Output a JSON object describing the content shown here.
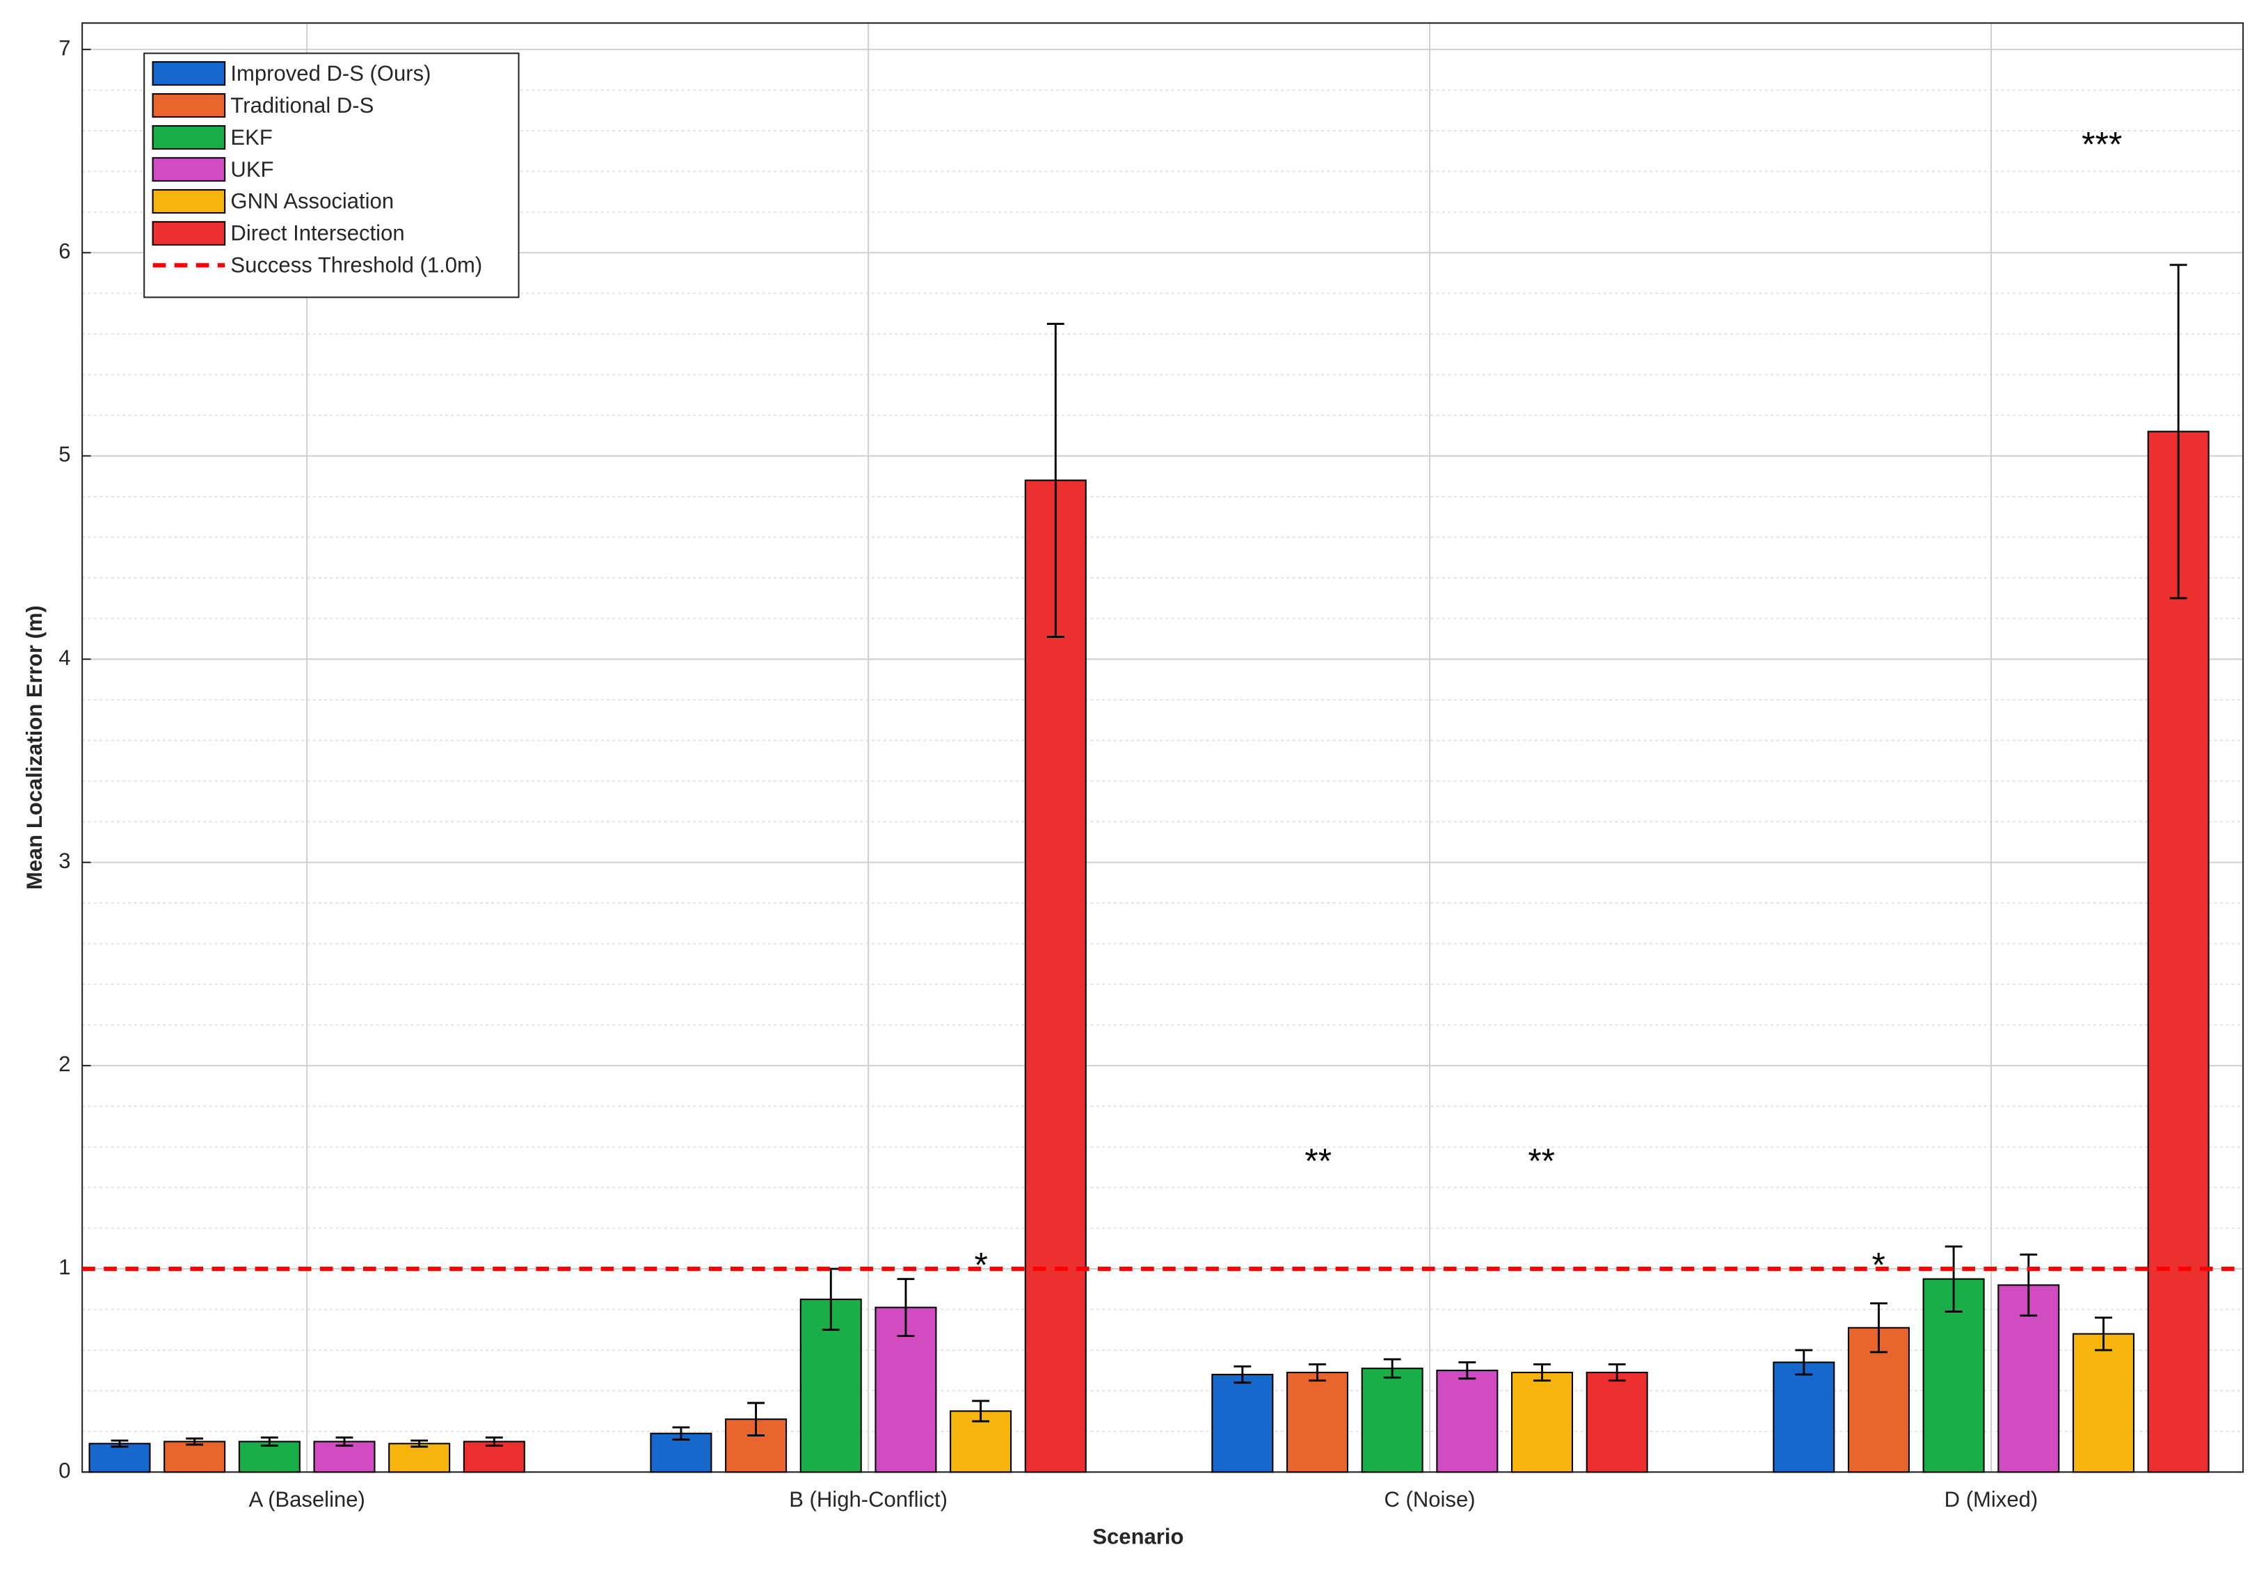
{
  "chart_data": {
    "type": "bar",
    "x_label": "Scenario",
    "y_label": "Mean Localization Error (m)",
    "categories": [
      "A (Baseline)",
      "B (High-Conflict)",
      "C (Noise)",
      "D (Mixed)"
    ],
    "series": [
      {
        "name": "Improved D-S (Ours)",
        "color": "#1668cc",
        "values": [
          0.14,
          0.19,
          0.48,
          0.54
        ],
        "errors": [
          0.015,
          0.03,
          0.04,
          0.06
        ]
      },
      {
        "name": "Traditional D-S",
        "color": "#e8652d",
        "values": [
          0.15,
          0.26,
          0.49,
          0.71
        ],
        "errors": [
          0.015,
          0.08,
          0.04,
          0.12
        ]
      },
      {
        "name": "EKF",
        "color": "#1aae48",
        "values": [
          0.15,
          0.85,
          0.51,
          0.95
        ],
        "errors": [
          0.02,
          0.15,
          0.045,
          0.16
        ]
      },
      {
        "name": "UKF",
        "color": "#d04cc0",
        "values": [
          0.15,
          0.81,
          0.5,
          0.92
        ],
        "errors": [
          0.02,
          0.14,
          0.04,
          0.15
        ]
      },
      {
        "name": "GNN Association",
        "color": "#f6b40d",
        "values": [
          0.14,
          0.3,
          0.49,
          0.68
        ],
        "errors": [
          0.015,
          0.05,
          0.04,
          0.08
        ]
      },
      {
        "name": "Direct Intersection",
        "color": "#ec3030",
        "values": [
          0.15,
          4.88,
          0.49,
          5.12
        ],
        "errors": [
          0.02,
          0.77,
          0.04,
          0.82
        ]
      }
    ],
    "reference_line": {
      "name": "Success Threshold (1.0m)",
      "value": 1,
      "color": "#ff0000"
    },
    "annotations": [
      "*",
      "**",
      "**",
      "*",
      "***"
    ],
    "ylim": [
      0,
      7.13
    ],
    "yticks": [
      0,
      1,
      2,
      3,
      4,
      5,
      6,
      7
    ],
    "grid": true,
    "legend": "upper-left"
  }
}
